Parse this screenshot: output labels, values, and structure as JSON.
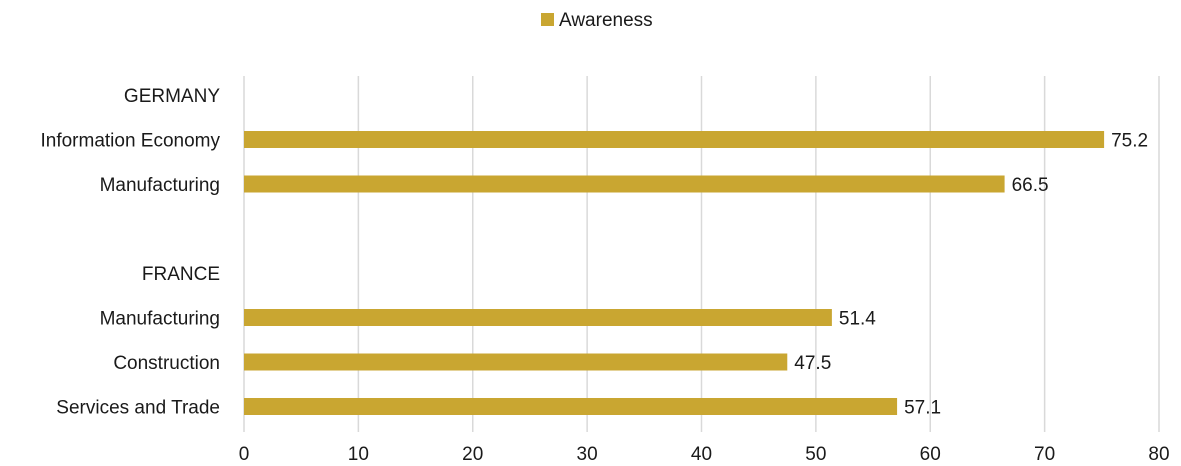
{
  "chart_data": {
    "type": "bar",
    "orientation": "horizontal",
    "series": [
      {
        "name": "Awareness",
        "color": "#c9a631"
      }
    ],
    "rows": [
      {
        "kind": "group",
        "label": "GERMANY"
      },
      {
        "kind": "bar",
        "label": "Information Economy",
        "value": 75.2,
        "value_label": "75.2"
      },
      {
        "kind": "bar",
        "label": "Manufacturing",
        "value": 66.5,
        "value_label": "66.5"
      },
      {
        "kind": "spacer"
      },
      {
        "kind": "group",
        "label": "FRANCE"
      },
      {
        "kind": "bar",
        "label": "Manufacturing",
        "value": 51.4,
        "value_label": "51.4"
      },
      {
        "kind": "bar",
        "label": "Construction",
        "value": 47.5,
        "value_label": "47.5"
      },
      {
        "kind": "bar",
        "label": "Services and Trade",
        "value": 57.1,
        "value_label": "57.1"
      }
    ],
    "xlim": [
      0,
      80
    ],
    "xticks": [
      "0",
      "10",
      "20",
      "30",
      "40",
      "50",
      "60",
      "70",
      "80"
    ],
    "grid": "vertical",
    "legend_position": "top-center"
  }
}
